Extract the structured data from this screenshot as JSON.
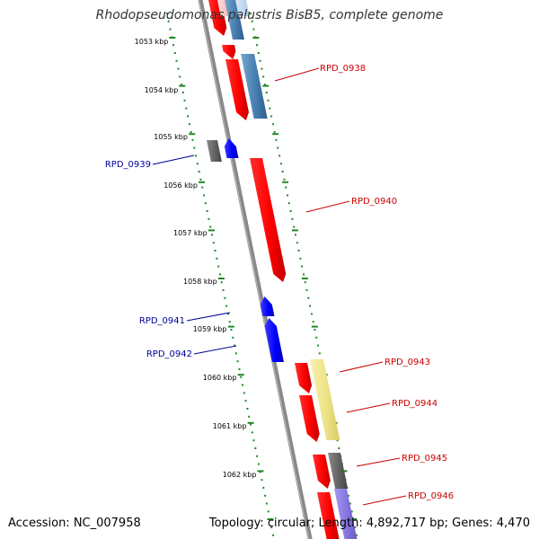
{
  "title": "Rhodopseudomonas palustris BisB5, complete genome",
  "footer": {
    "accession": "Accession: NC_007958",
    "stats": "Topology: circular; Length: 4,892,717 bp; Genes: 4,470"
  },
  "colors": {
    "forward_cds": "#ff0000",
    "reverse_cds": "#0000ff",
    "forward_label": "#cc0000",
    "reverse_label": "#000099",
    "tick": "#228822",
    "backbone": "#888888"
  },
  "kbp_ticks": [
    "1053 kbp",
    "1054 kbp",
    "1055 kbp",
    "1056 kbp",
    "1057 kbp",
    "1058 kbp",
    "1059 kbp",
    "1060 kbp",
    "1061 kbp",
    "1062 kbp"
  ],
  "genes": [
    {
      "label": "RPD_0938",
      "strand": "forward"
    },
    {
      "label": "RPD_0939",
      "strand": "reverse"
    },
    {
      "label": "RPD_0940",
      "strand": "forward"
    },
    {
      "label": "RPD_0941",
      "strand": "reverse"
    },
    {
      "label": "RPD_0942",
      "strand": "reverse"
    },
    {
      "label": "RPD_0943",
      "strand": "forward"
    },
    {
      "label": "RPD_0944",
      "strand": "forward"
    },
    {
      "label": "RPD_0945",
      "strand": "forward"
    },
    {
      "label": "RPD_0946",
      "strand": "forward"
    }
  ]
}
